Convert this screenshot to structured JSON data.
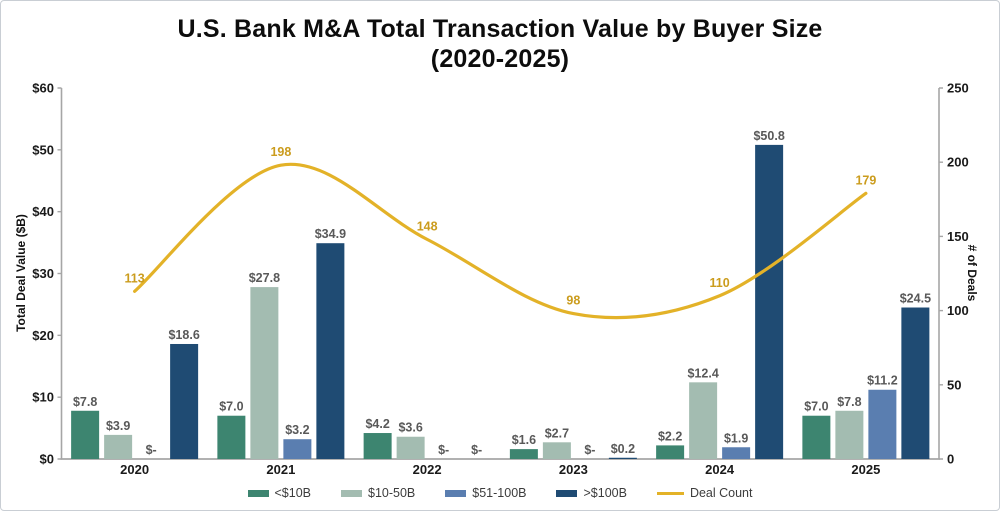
{
  "chart_data": {
    "type": "bar",
    "subtype": "grouped-bar-with-line-combo",
    "title_line1": "U.S. Bank M&A Total Transaction Value by Buyer Size",
    "title_line2": "(2020-2025)",
    "categories": [
      "2020",
      "2021",
      "2022",
      "2023",
      "2024",
      "2025"
    ],
    "series": [
      {
        "name": "<$10B",
        "type": "bar",
        "color": "#3D8570",
        "values": [
          7.8,
          7.0,
          4.2,
          1.6,
          2.2,
          7.0
        ],
        "labels": [
          "$7.8",
          "$7.0",
          "$4.2",
          "$1.6",
          "$2.2",
          "$7.0"
        ]
      },
      {
        "name": "$10-50B",
        "type": "bar",
        "color": "#A3BCB1",
        "values": [
          3.9,
          27.8,
          3.6,
          2.7,
          12.4,
          7.8
        ],
        "labels": [
          "$3.9",
          "$27.8",
          "$3.6",
          "$2.7",
          "$12.4",
          "$7.8"
        ]
      },
      {
        "name": "$51-100B",
        "type": "bar",
        "color": "#5A7EB0",
        "values": [
          0,
          3.2,
          0,
          0,
          1.9,
          11.2
        ],
        "labels": [
          "$-",
          "$3.2",
          "$-",
          "$-",
          "$1.9",
          "$11.2"
        ]
      },
      {
        "name": ">$100B",
        "type": "bar",
        "color": "#1F4B73",
        "values": [
          18.6,
          34.9,
          0,
          0.2,
          50.8,
          24.5
        ],
        "labels": [
          "$18.6",
          "$34.9",
          "$-",
          "$0.2",
          "$50.8",
          "$24.5"
        ]
      }
    ],
    "line_series": {
      "name": "Deal Count",
      "type": "line",
      "color": "#E3B228",
      "label_color": "#CB9C1D",
      "values": [
        113,
        198,
        148,
        98,
        110,
        179
      ],
      "labels": [
        "113",
        "198",
        "148",
        "98",
        "110",
        "179"
      ]
    },
    "left_axis": {
      "title": "Total Deal Value ($B)",
      "min": 0,
      "max": 60,
      "step": 10,
      "tick_labels": [
        "$0",
        "$10",
        "$20",
        "$30",
        "$40",
        "$50",
        "$60"
      ]
    },
    "right_axis": {
      "title": "# of Deals",
      "min": 0,
      "max": 250,
      "step": 50,
      "tick_labels": [
        "0",
        "50",
        "100",
        "150",
        "200",
        "250"
      ]
    },
    "style": {
      "bar_label_color": "#595959",
      "tick_label_color": "#1a1a1a",
      "axis_line_color": "#a6a6a6",
      "grid": "off",
      "legend_position": "bottom"
    }
  }
}
